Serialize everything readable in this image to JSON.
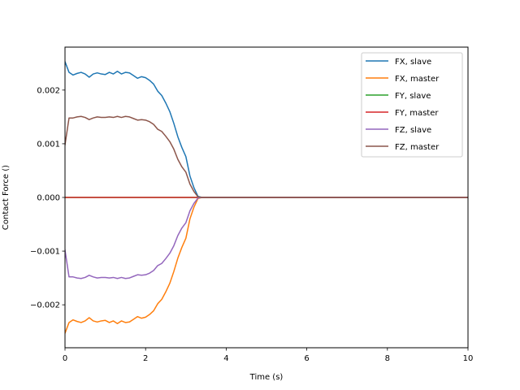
{
  "chart_data": {
    "type": "line",
    "title": "",
    "xlabel": "Time (s)",
    "ylabel": "Contact Force ()",
    "xlim": [
      0,
      10
    ],
    "ylim": [
      -0.0028,
      0.0028
    ],
    "xticks": [
      0,
      2,
      4,
      6,
      8,
      10
    ],
    "xtick_labels": [
      "0",
      "2",
      "4",
      "6",
      "8",
      "10"
    ],
    "yticks": [
      -0.002,
      -0.001,
      0.0,
      0.001,
      0.002
    ],
    "ytick_labels": [
      "−0.002",
      "−0.001",
      "0.000",
      "0.001",
      "0.002"
    ],
    "grid": false,
    "legend_position": "top-right",
    "series": [
      {
        "name": "FX, slave",
        "color": "#1f77b4",
        "x": [
          0,
          0.1,
          0.2,
          0.3,
          0.4,
          0.5,
          0.6,
          0.7,
          0.8,
          0.9,
          1.0,
          1.1,
          1.2,
          1.3,
          1.4,
          1.5,
          1.6,
          1.7,
          1.8,
          1.9,
          2.0,
          2.1,
          2.2,
          2.3,
          2.4,
          2.5,
          2.6,
          2.7,
          2.8,
          2.9,
          3.0,
          3.1,
          3.2,
          3.3,
          3.4,
          10
        ],
        "y": [
          0.00253,
          0.00233,
          0.00228,
          0.00231,
          0.00233,
          0.0023,
          0.00224,
          0.0023,
          0.00232,
          0.0023,
          0.00229,
          0.00233,
          0.0023,
          0.00235,
          0.0023,
          0.00233,
          0.00232,
          0.00227,
          0.00222,
          0.00225,
          0.00223,
          0.00218,
          0.00211,
          0.00198,
          0.0019,
          0.00176,
          0.0016,
          0.00138,
          0.00113,
          0.00093,
          0.00076,
          0.0004,
          0.00018,
          2e-05,
          0.0,
          0.0
        ]
      },
      {
        "name": "FX, master",
        "color": "#ff7f0e",
        "x": [
          0,
          0.1,
          0.2,
          0.3,
          0.4,
          0.5,
          0.6,
          0.7,
          0.8,
          0.9,
          1.0,
          1.1,
          1.2,
          1.3,
          1.4,
          1.5,
          1.6,
          1.7,
          1.8,
          1.9,
          2.0,
          2.1,
          2.2,
          2.3,
          2.4,
          2.5,
          2.6,
          2.7,
          2.8,
          2.9,
          3.0,
          3.1,
          3.2,
          3.3,
          3.4,
          10
        ],
        "y": [
          -0.00253,
          -0.00233,
          -0.00228,
          -0.00231,
          -0.00233,
          -0.0023,
          -0.00224,
          -0.0023,
          -0.00232,
          -0.0023,
          -0.00229,
          -0.00233,
          -0.0023,
          -0.00235,
          -0.0023,
          -0.00233,
          -0.00232,
          -0.00227,
          -0.00222,
          -0.00225,
          -0.00223,
          -0.00218,
          -0.00211,
          -0.00198,
          -0.0019,
          -0.00176,
          -0.0016,
          -0.00138,
          -0.00113,
          -0.00093,
          -0.00076,
          -0.0004,
          -0.00018,
          -2e-05,
          0.0,
          0.0
        ]
      },
      {
        "name": "FY, slave",
        "color": "#2ca02c",
        "x": [
          0,
          10
        ],
        "y": [
          0.0,
          0.0
        ]
      },
      {
        "name": "FY, master",
        "color": "#d62728",
        "x": [
          0,
          10
        ],
        "y": [
          0.0,
          0.0
        ]
      },
      {
        "name": "FZ, slave",
        "color": "#9467bd",
        "x": [
          0,
          0.1,
          0.2,
          0.3,
          0.4,
          0.5,
          0.6,
          0.7,
          0.8,
          0.9,
          1.0,
          1.1,
          1.2,
          1.3,
          1.4,
          1.5,
          1.6,
          1.7,
          1.8,
          1.9,
          2.0,
          2.1,
          2.2,
          2.3,
          2.4,
          2.5,
          2.6,
          2.7,
          2.8,
          2.9,
          3.0,
          3.1,
          3.2,
          3.3,
          3.4,
          10
        ],
        "y": [
          -0.00098,
          -0.00148,
          -0.00148,
          -0.0015,
          -0.00151,
          -0.00149,
          -0.00145,
          -0.00148,
          -0.0015,
          -0.00149,
          -0.00149,
          -0.0015,
          -0.00149,
          -0.00151,
          -0.00149,
          -0.00151,
          -0.0015,
          -0.00147,
          -0.00144,
          -0.00145,
          -0.00144,
          -0.00141,
          -0.00136,
          -0.00127,
          -0.00123,
          -0.00114,
          -0.00104,
          -0.0009,
          -0.00071,
          -0.00057,
          -0.00047,
          -0.00025,
          -0.00011,
          -1e-05,
          0.0,
          0.0
        ]
      },
      {
        "name": "FZ, master",
        "color": "#8c564b",
        "x": [
          0,
          0.1,
          0.2,
          0.3,
          0.4,
          0.5,
          0.6,
          0.7,
          0.8,
          0.9,
          1.0,
          1.1,
          1.2,
          1.3,
          1.4,
          1.5,
          1.6,
          1.7,
          1.8,
          1.9,
          2.0,
          2.1,
          2.2,
          2.3,
          2.4,
          2.5,
          2.6,
          2.7,
          2.8,
          2.9,
          3.0,
          3.1,
          3.2,
          3.3,
          3.4,
          10
        ],
        "y": [
          0.00098,
          0.00148,
          0.00148,
          0.0015,
          0.00151,
          0.00149,
          0.00145,
          0.00148,
          0.0015,
          0.00149,
          0.00149,
          0.0015,
          0.00149,
          0.00151,
          0.00149,
          0.00151,
          0.0015,
          0.00147,
          0.00144,
          0.00145,
          0.00144,
          0.00141,
          0.00136,
          0.00127,
          0.00123,
          0.00114,
          0.00104,
          0.0009,
          0.00071,
          0.00057,
          0.00047,
          0.00025,
          0.00011,
          1e-05,
          0.0,
          0.0
        ]
      }
    ]
  }
}
